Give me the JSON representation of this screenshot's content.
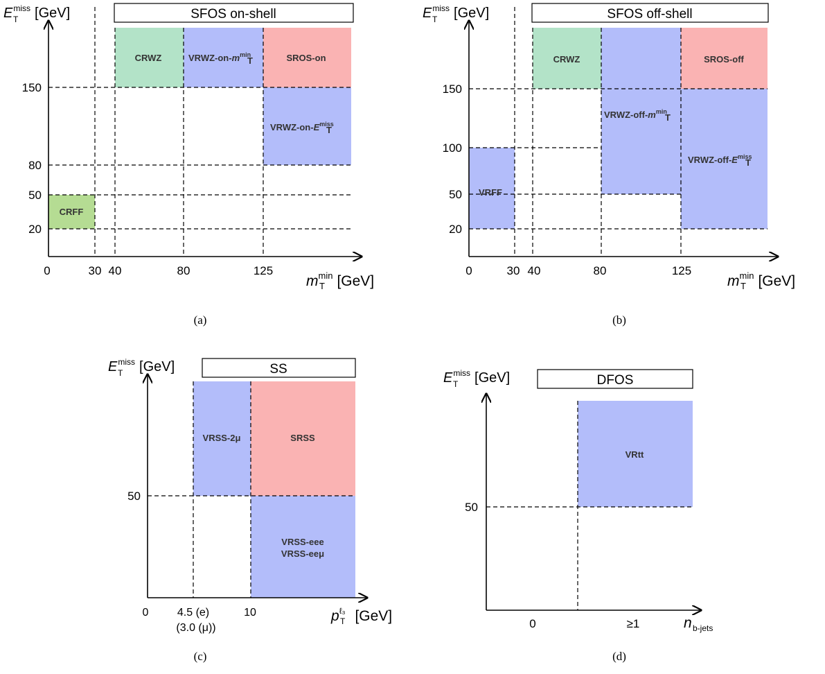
{
  "colors": {
    "cr_green": "#b3e3c8",
    "crff_green": "#b5dc93",
    "vr_blue": "#b3bdfa",
    "sr_red": "#fab3b3"
  },
  "panels": [
    {
      "caption": "(a)",
      "header": "SFOS on-shell",
      "y_label": {
        "main": "E",
        "sub": "T",
        "sup": "miss",
        "unit": "[GeV]"
      },
      "x_label": {
        "main": "m",
        "sub": "T",
        "sup": "min",
        "unit": "[GeV]"
      },
      "x_ticks": [
        "0",
        "30",
        "40",
        "80",
        "125"
      ],
      "y_ticks": [
        "150",
        "80",
        "50",
        "20"
      ],
      "regions": [
        {
          "label": "CRWZ"
        },
        {
          "label": "VRWZ-on-",
          "math": "m",
          "sub": "T",
          "sup": "min"
        },
        {
          "label": "SROS-on"
        },
        {
          "label": "VRWZ-on-",
          "math": "E",
          "sub": "T",
          "sup": "miss"
        },
        {
          "label": "CRFF"
        }
      ]
    },
    {
      "caption": "(b)",
      "header": "SFOS off-shell",
      "y_label": {
        "main": "E",
        "sub": "T",
        "sup": "miss",
        "unit": "[GeV]"
      },
      "x_label": {
        "main": "m",
        "sub": "T",
        "sup": "min",
        "unit": "[GeV]"
      },
      "x_ticks": [
        "0",
        "30",
        "40",
        "80",
        "125"
      ],
      "y_ticks": [
        "150",
        "100",
        "50",
        "20"
      ],
      "regions": [
        {
          "label": "CRWZ"
        },
        {
          "label": "SROS-off"
        },
        {
          "label": "VRWZ-off-",
          "math": "m",
          "sub": "T",
          "sup": "min"
        },
        {
          "label": "VRWZ-off-",
          "math": "E",
          "sub": "T",
          "sup": "miss"
        },
        {
          "label": "VRFF"
        }
      ]
    },
    {
      "caption": "(c)",
      "header": "SS",
      "y_label": {
        "main": "E",
        "sub": "T",
        "sup": "miss",
        "unit": "[GeV]"
      },
      "x_label": {
        "main": "p",
        "sub": "T",
        "sup": "ℓ₃",
        "unit": "[GeV]"
      },
      "x_ticks": [
        "0",
        "4.5 (e)",
        "(3.0 (μ))",
        "10"
      ],
      "y_ticks": [
        "50"
      ],
      "regions": [
        {
          "label": "VRSS-2μ"
        },
        {
          "label": "SRSS"
        },
        {
          "label": "VRSS-eee"
        },
        {
          "label": "VRSS-eeμ"
        }
      ]
    },
    {
      "caption": "(d)",
      "header": "DFOS",
      "y_label": {
        "main": "E",
        "sub": "T",
        "sup": "miss",
        "unit": "[GeV]"
      },
      "x_label": {
        "main": "n",
        "sub": "b-jets"
      },
      "x_ticks": [
        "0",
        "≥1"
      ],
      "y_ticks": [
        "50"
      ],
      "regions": [
        {
          "label": "VRtt"
        }
      ]
    }
  ]
}
